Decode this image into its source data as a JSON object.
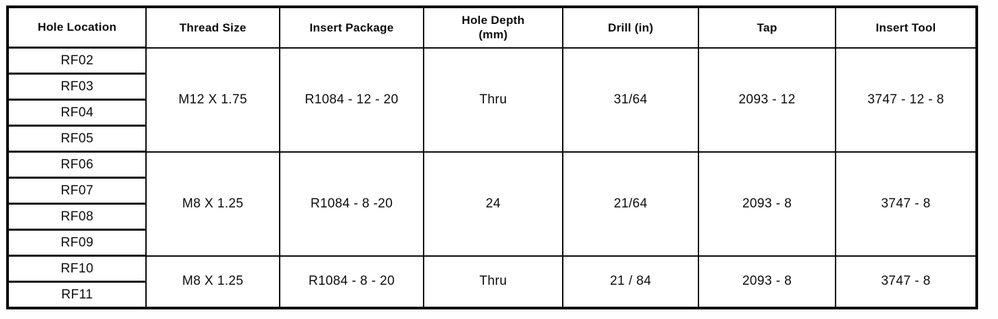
{
  "table": {
    "headers": [
      "Hole Location",
      "Thread Size",
      "Insert Package",
      "Hole Depth\n(mm)",
      "Drill (in)",
      "Tap",
      "Insert Tool"
    ],
    "groups": [
      {
        "hole_locations": [
          "RF02",
          "RF03",
          "RF04",
          "RF05"
        ],
        "thread_size": "M12 X 1.75",
        "insert_package": "R1084 - 12 - 20",
        "hole_depth": "Thru",
        "drill": "31/64",
        "tap": "2093 - 12",
        "insert_tool": "3747 - 12 - 8"
      },
      {
        "hole_locations": [
          "RF06",
          "RF07",
          "RF08",
          "RF09"
        ],
        "thread_size": "M8 X 1.25",
        "insert_package": "R1084 - 8 -20",
        "hole_depth": "24",
        "drill": "21/64",
        "tap": "2093 - 8",
        "insert_tool": "3747 - 8"
      },
      {
        "hole_locations": [
          "RF10",
          "RF11"
        ],
        "thread_size": "M8 X 1.25",
        "insert_package": "R1084 - 8 - 20",
        "hole_depth": "Thru",
        "drill": "21 / 84",
        "tap": "2093 - 8",
        "insert_tool": "3747 - 8"
      }
    ],
    "colors": {
      "border": "#0b0b0b",
      "text": "#0d0d0d",
      "background": "#ffffff"
    }
  }
}
